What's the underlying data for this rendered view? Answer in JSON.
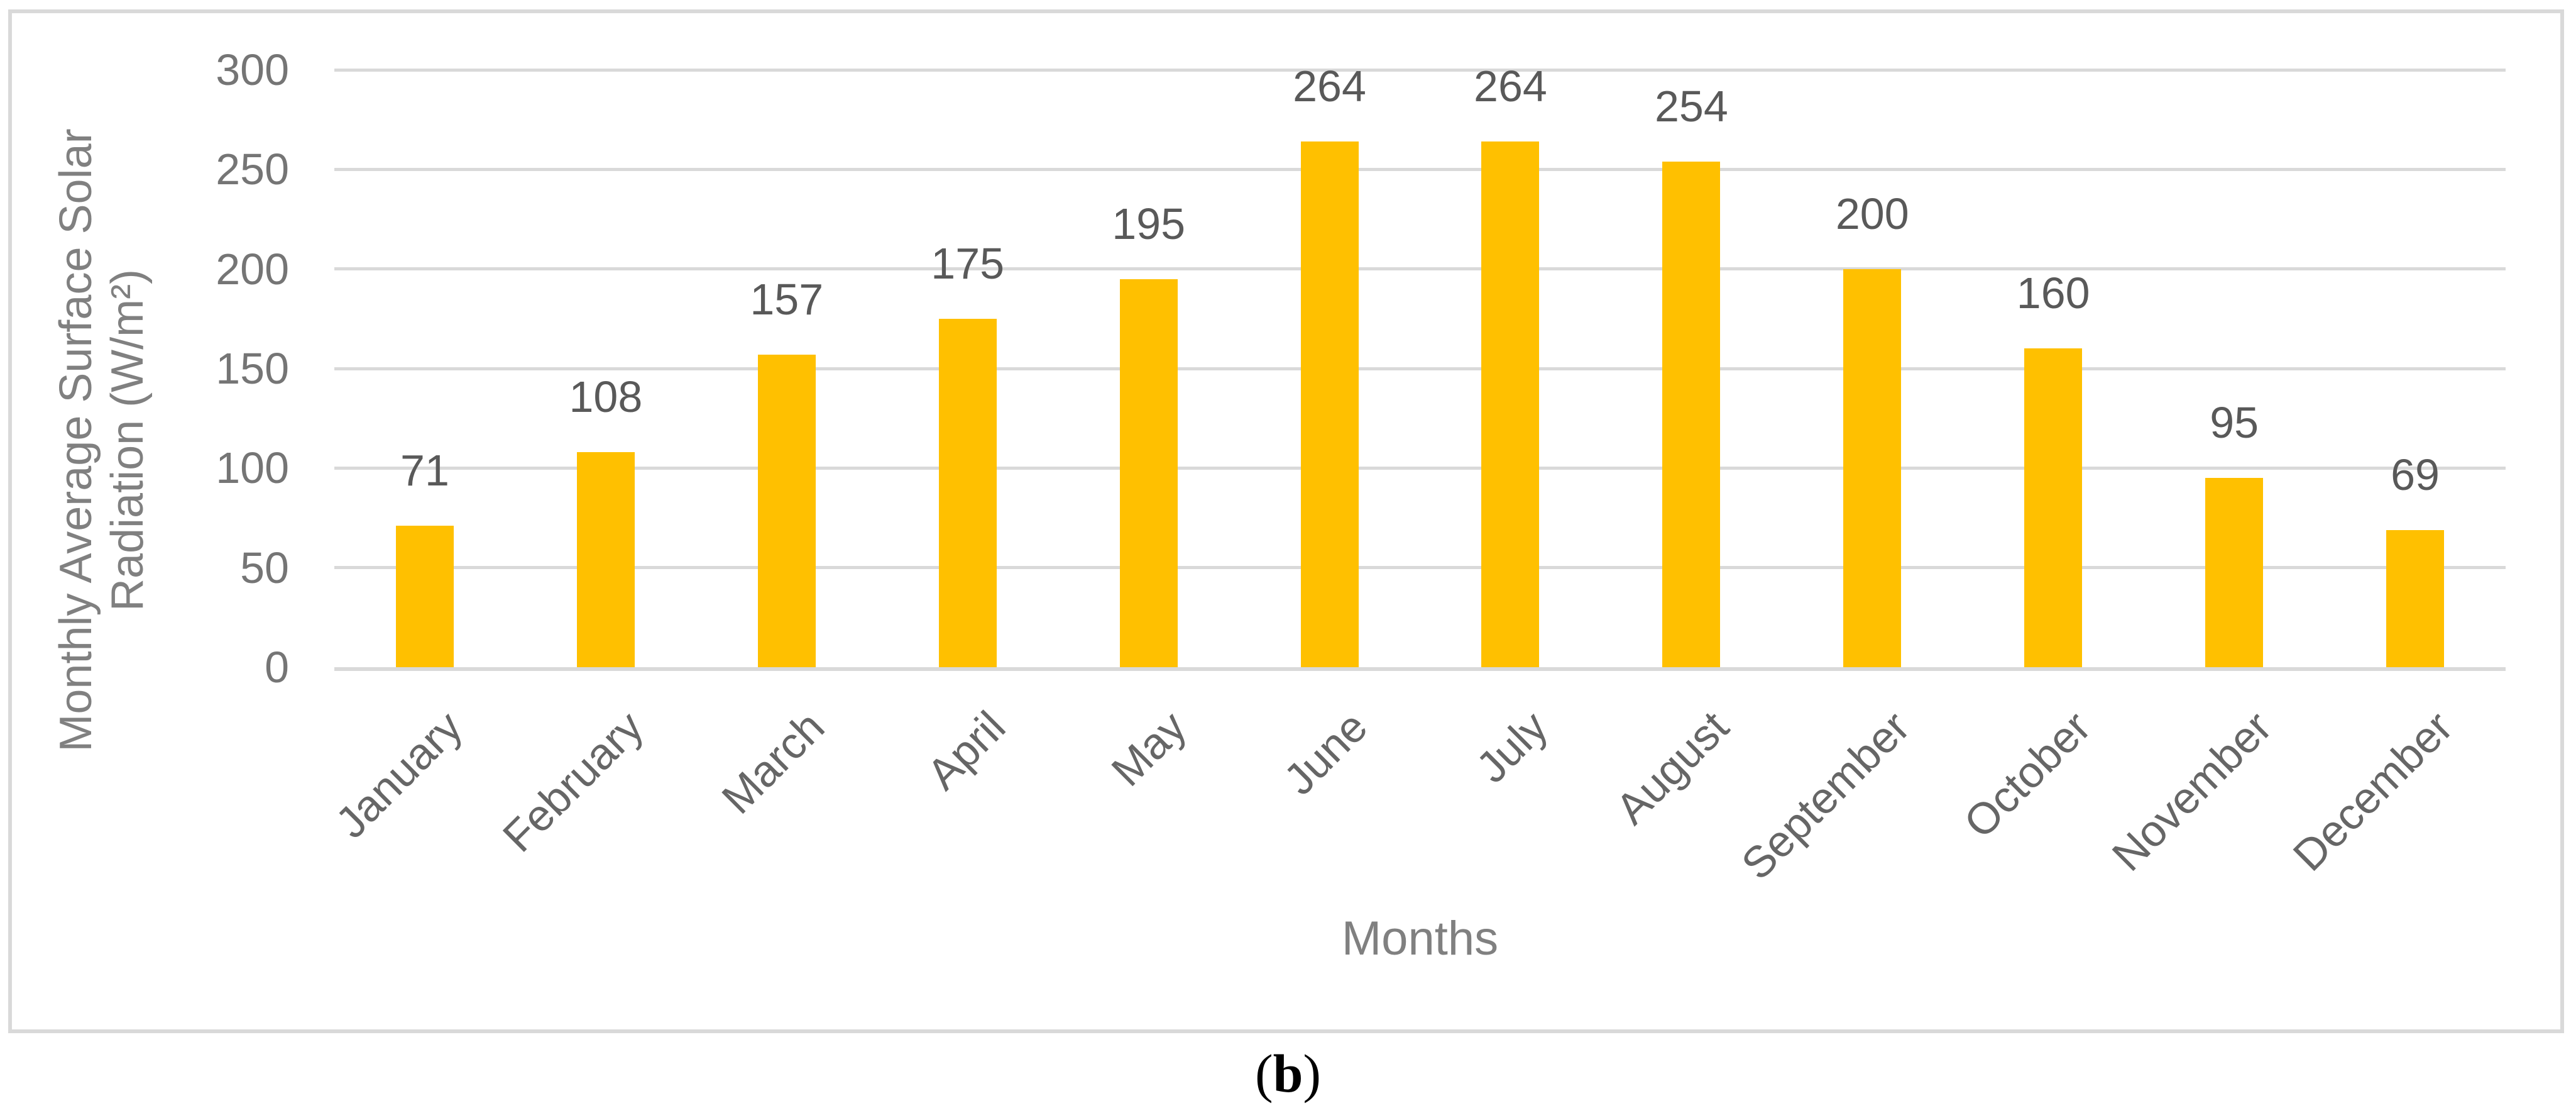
{
  "figure": {
    "caption": {
      "text": "(b)",
      "prefix": "(",
      "letter": "b",
      "suffix": ")"
    }
  },
  "chart_data": {
    "type": "bar",
    "title": "",
    "categories": [
      "January",
      "February",
      "March",
      "April",
      "May",
      "June",
      "July",
      "August",
      "September",
      "October",
      "November",
      "December"
    ],
    "values": [
      71,
      108,
      157,
      175,
      195,
      264,
      264,
      254,
      200,
      160,
      95,
      69
    ],
    "data_labels": [
      "71",
      "108",
      "157",
      "175",
      "195",
      "264",
      "264",
      "254",
      "200",
      "160",
      "95",
      "69"
    ],
    "xlabel": "Months",
    "ylabel": "Monthly Average Surface Solar Radiation (W/m²)",
    "ylabel_lines": [
      "Monthly Average Surface Solar",
      "Radiation (W/m²)"
    ],
    "ylim": [
      0,
      300
    ],
    "yticks": [
      0,
      50,
      100,
      150,
      200,
      250,
      300
    ],
    "grid": "horizontal",
    "legend": "none",
    "colors": {
      "bar": "#FFC000",
      "gridline": "#D9D9D9",
      "frame_border": "#D9D9D9",
      "axis_line": "#D9D9D9",
      "tick_label": "#757575",
      "data_label": "#595959",
      "month_label": "#666666",
      "axis_title": "#808080"
    }
  }
}
